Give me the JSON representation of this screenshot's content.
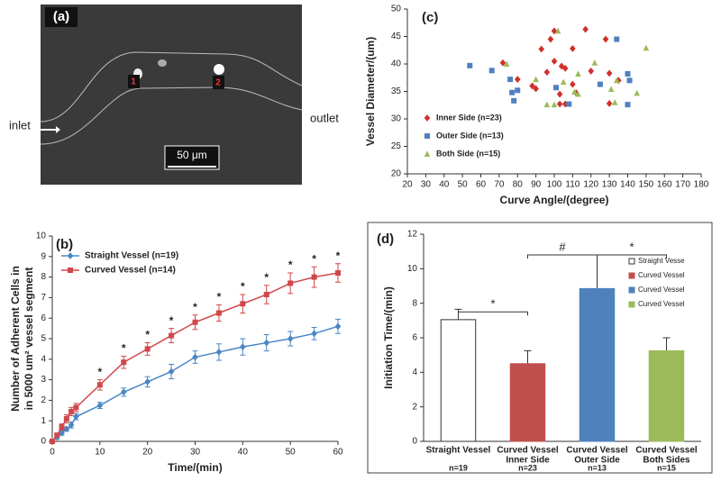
{
  "image_panel": {
    "panel": "(a)",
    "cell_1": "1",
    "cell_2": "2",
    "inlet": "inlet",
    "outlet": "outlet",
    "scale_bar": "50 μm"
  },
  "chart_data": [
    {
      "type": "line",
      "panel": "(b)",
      "xlabel": "Time/(min)",
      "ylabel": [
        "Number of Adherent Cells in",
        "in 5000 um² vessel segment"
      ],
      "x": [
        0,
        1,
        2,
        3,
        4,
        5,
        10,
        15,
        20,
        25,
        30,
        35,
        40,
        45,
        50,
        55,
        60
      ],
      "xlim": [
        0,
        60
      ],
      "xticks": [
        0,
        10,
        20,
        30,
        40,
        50,
        60
      ],
      "ylim": [
        0,
        10
      ],
      "yticks": [
        0,
        1,
        2,
        3,
        4,
        5,
        6,
        7,
        8,
        9,
        10
      ],
      "legend": "upper-left",
      "series": [
        {
          "name": "Straight Vessel (n=19)",
          "color": "#4a86c5",
          "marker": "diamond",
          "values": [
            0,
            0.2,
            0.4,
            0.6,
            0.8,
            1.2,
            1.75,
            2.4,
            2.9,
            3.4,
            4.1,
            4.35,
            4.6,
            4.8,
            5.0,
            5.25,
            5.6
          ],
          "errors": [
            0,
            0.1,
            0.1,
            0.1,
            0.15,
            0.15,
            0.15,
            0.2,
            0.25,
            0.35,
            0.3,
            0.4,
            0.4,
            0.4,
            0.35,
            0.3,
            0.35
          ]
        },
        {
          "name": "Curved Vessel (n=14)",
          "color": "#d0474a",
          "marker": "square",
          "values": [
            0,
            0.3,
            0.7,
            1.1,
            1.45,
            1.65,
            2.75,
            3.85,
            4.5,
            5.15,
            5.8,
            6.25,
            6.7,
            7.15,
            7.7,
            8.0,
            8.2
          ],
          "errors": [
            0,
            0.1,
            0.15,
            0.2,
            0.2,
            0.2,
            0.25,
            0.3,
            0.3,
            0.35,
            0.35,
            0.4,
            0.45,
            0.45,
            0.5,
            0.5,
            0.45
          ]
        }
      ],
      "annotations": [
        {
          "text": "*",
          "x": 10
        },
        {
          "text": "*",
          "x": 15
        },
        {
          "text": "*",
          "x": 20
        },
        {
          "text": "*",
          "x": 25
        },
        {
          "text": "*",
          "x": 30
        },
        {
          "text": "*",
          "x": 35
        },
        {
          "text": "*",
          "x": 40
        },
        {
          "text": "*",
          "x": 45
        },
        {
          "text": "*",
          "x": 50
        },
        {
          "text": "*",
          "x": 55
        },
        {
          "text": "*",
          "x": 60
        }
      ]
    },
    {
      "type": "scatter",
      "panel": "(c)",
      "xlabel": "Curve Angle/(degree)",
      "ylabel": [
        "Vessel Diameter/(um)"
      ],
      "xlim": [
        20,
        180
      ],
      "xticks": [
        20,
        30,
        40,
        50,
        60,
        70,
        80,
        90,
        100,
        110,
        120,
        130,
        140,
        150,
        160,
        170,
        180
      ],
      "ylim": [
        20,
        50
      ],
      "yticks": [
        20,
        25,
        30,
        35,
        40,
        45,
        50
      ],
      "legend": "lower-left",
      "series": [
        {
          "name": "Inner Side (n=23)",
          "color": "#d0302c",
          "marker": "diamond",
          "x": [
            72,
            80,
            88,
            90,
            93,
            96,
            98,
            100,
            100,
            103,
            104,
            106,
            103,
            106,
            110,
            110,
            112,
            117,
            120,
            128,
            130,
            130,
            135
          ],
          "values": [
            40.2,
            37.2,
            36,
            35.5,
            42.7,
            38.5,
            44.5,
            46,
            40.5,
            34.5,
            39.6,
            39.2,
            32.7,
            32.7,
            42.8,
            36.3,
            34.7,
            46.3,
            38.7,
            44.5,
            38.3,
            32.8,
            37
          ]
        },
        {
          "name": "Outer Side (n=13)",
          "color": "#4f81bd",
          "marker": "square",
          "x": [
            54,
            66,
            76,
            77,
            78,
            80,
            101,
            108,
            125,
            134,
            140,
            141,
            140
          ],
          "values": [
            39.7,
            38.8,
            37.2,
            34.8,
            33.3,
            35.2,
            35.7,
            32.7,
            36.3,
            44.5,
            38.2,
            37,
            32.6
          ]
        },
        {
          "name": "Both Side (n=15)",
          "color": "#9bbb59",
          "marker": "triangle",
          "x": [
            74,
            90,
            96,
            100,
            102,
            105,
            111,
            113,
            122,
            131,
            133,
            134,
            145,
            150,
            113
          ],
          "values": [
            40,
            37.2,
            32.6,
            32.6,
            46,
            36.7,
            34.9,
            38.2,
            40.2,
            35.4,
            33,
            37,
            34.7,
            42.9,
            34.5
          ]
        }
      ]
    },
    {
      "type": "bar",
      "panel": "(d)",
      "ylabel": [
        "Initiation Time/(min)"
      ],
      "categories": [
        [
          "Straight Vessel"
        ],
        [
          "Curved Vessel",
          "Inner Side"
        ],
        [
          "Curved Vessel",
          "Outer Side"
        ],
        [
          "Curved Vessel",
          "Both Sides"
        ]
      ],
      "n_labels": [
        "n=19",
        "n=23",
        "n=13",
        "n=15"
      ],
      "values": [
        7.05,
        4.5,
        8.85,
        5.25
      ],
      "errors": [
        0.6,
        0.75,
        1.95,
        0.75
      ],
      "colors": [
        "#ffffff",
        "#c0504d",
        "#4f81bd",
        "#9bbb59"
      ],
      "legend_labels": [
        "Straight Vesse",
        "Curved Vessel",
        "Curved Vessel",
        "Curved Vessel"
      ],
      "legend": "upper-right",
      "ylim": [
        0,
        12
      ],
      "yticks": [
        0,
        2,
        4,
        6,
        8,
        10,
        12
      ],
      "brackets": [
        {
          "from": 0,
          "to": 1,
          "y": 7.5,
          "label": "*"
        },
        {
          "from": 1,
          "to": 2,
          "y": 10.8,
          "label": "#"
        },
        {
          "from": 2,
          "to": 3,
          "y": 10.8,
          "label": "*"
        }
      ]
    }
  ]
}
